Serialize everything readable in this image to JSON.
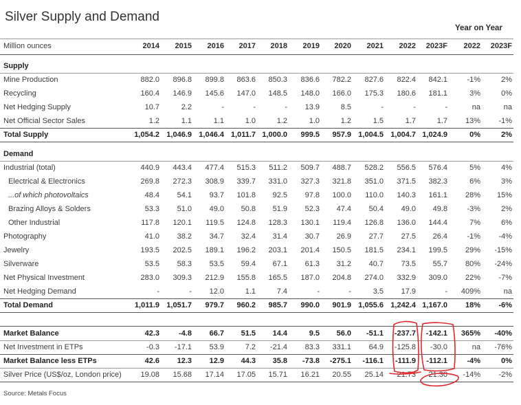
{
  "title": "Silver Supply and Demand",
  "yoy_heading": "Year on Year",
  "unit_label": "Million ounces",
  "columns": [
    "2014",
    "2015",
    "2016",
    "2017",
    "2018",
    "2019",
    "2020",
    "2021",
    "2022",
    "2023F",
    "2022",
    "2023F"
  ],
  "supply": {
    "heading": "Supply",
    "rows": [
      {
        "label": "Mine Production",
        "values": [
          "882.0",
          "896.8",
          "899.8",
          "863.6",
          "850.3",
          "836.6",
          "782.2",
          "827.6",
          "822.4",
          "842.1",
          "-1%",
          "2%"
        ]
      },
      {
        "label": "Recycling",
        "values": [
          "160.4",
          "146.9",
          "145.6",
          "147.0",
          "148.5",
          "148.0",
          "166.0",
          "175.3",
          "180.6",
          "181.1",
          "3%",
          "0%"
        ]
      },
      {
        "label": "Net Hedging Supply",
        "values": [
          "10.7",
          "2.2",
          "-",
          "-",
          "-",
          "13.9",
          "8.5",
          "-",
          "-",
          "-",
          "na",
          "na"
        ]
      },
      {
        "label": "Net Official Sector Sales",
        "values": [
          "1.2",
          "1.1",
          "1.1",
          "1.0",
          "1.2",
          "1.0",
          "1.2",
          "1.5",
          "1.7",
          "1.7",
          "13%",
          "-1%"
        ]
      }
    ],
    "total": {
      "label": "Total Supply",
      "values": [
        "1,054.2",
        "1,046.9",
        "1,046.4",
        "1,011.7",
        "1,000.0",
        "999.5",
        "957.9",
        "1,004.5",
        "1,004.7",
        "1,024.9",
        "0%",
        "2%"
      ]
    }
  },
  "demand": {
    "heading": "Demand",
    "rows": [
      {
        "label": "Industrial (total)",
        "values": [
          "440.9",
          "443.4",
          "477.4",
          "515.3",
          "511.2",
          "509.7",
          "488.7",
          "528.2",
          "556.5",
          "576.4",
          "5%",
          "4%"
        ]
      },
      {
        "label": "Electrical & Electronics",
        "values": [
          "269.8",
          "272.3",
          "308.9",
          "339.7",
          "331.0",
          "327.3",
          "321.8",
          "351.0",
          "371.5",
          "382.3",
          "6%",
          "3%"
        ]
      },
      {
        "label": "...of which photovoltaics",
        "values": [
          "48.4",
          "54.1",
          "93.7",
          "101.8",
          "92.5",
          "97.8",
          "100.0",
          "110.0",
          "140.3",
          "161.1",
          "28%",
          "15%"
        ]
      },
      {
        "label": "Brazing Alloys & Solders",
        "values": [
          "53.3",
          "51.0",
          "49.0",
          "50.8",
          "51.9",
          "52.3",
          "47.4",
          "50.4",
          "49.0",
          "49.8",
          "-3%",
          "2%"
        ]
      },
      {
        "label": "Other Industrial",
        "values": [
          "117.8",
          "120.1",
          "119.5",
          "124.8",
          "128.3",
          "130.1",
          "119.4",
          "126.8",
          "136.0",
          "144.4",
          "7%",
          "6%"
        ]
      },
      {
        "label": "Photography",
        "values": [
          "41.0",
          "38.2",
          "34.7",
          "32.4",
          "31.4",
          "30.7",
          "26.9",
          "27.7",
          "27.5",
          "26.4",
          "-1%",
          "-4%"
        ]
      },
      {
        "label": "Jewelry",
        "values": [
          "193.5",
          "202.5",
          "189.1",
          "196.2",
          "203.1",
          "201.4",
          "150.5",
          "181.5",
          "234.1",
          "199.5",
          "29%",
          "-15%"
        ]
      },
      {
        "label": "Silverware",
        "values": [
          "53.5",
          "58.3",
          "53.5",
          "59.4",
          "67.1",
          "61.3",
          "31.2",
          "40.7",
          "73.5",
          "55.7",
          "80%",
          "-24%"
        ]
      },
      {
        "label": "Net Physical Investment",
        "values": [
          "283.0",
          "309.3",
          "212.9",
          "155.8",
          "165.5",
          "187.0",
          "204.8",
          "274.0",
          "332.9",
          "309.0",
          "22%",
          "-7%"
        ]
      },
      {
        "label": "Net Hedging Demand",
        "values": [
          "-",
          "-",
          "12.0",
          "1.1",
          "7.4",
          "-",
          "-",
          "3.5",
          "17.9",
          "-",
          "409%",
          "na"
        ]
      }
    ],
    "total": {
      "label": "Total Demand",
      "values": [
        "1,011.9",
        "1,051.7",
        "979.7",
        "960.2",
        "985.7",
        "990.0",
        "901.9",
        "1,055.6",
        "1,242.4",
        "1,167.0",
        "18%",
        "-6%"
      ]
    }
  },
  "balance": {
    "market_balance": {
      "label": "Market Balance",
      "values": [
        "42.3",
        "-4.8",
        "66.7",
        "51.5",
        "14.4",
        "9.5",
        "56.0",
        "-51.1",
        "-237.7",
        "-142.1",
        "365%",
        "-40%"
      ]
    },
    "etps": {
      "label": "Net Investment in ETPs",
      "values": [
        "-0.3",
        "-17.1",
        "53.9",
        "7.2",
        "-21.4",
        "83.3",
        "331.1",
        "64.9",
        "-125.8",
        "-30.0",
        "na",
        "-76%"
      ]
    },
    "less_etps": {
      "label": "Market Balance less ETPs",
      "values": [
        "42.6",
        "12.3",
        "12.9",
        "44.3",
        "35.8",
        "-73.8",
        "-275.1",
        "-116.1",
        "-111.9",
        "-112.1",
        "-4%",
        "0%"
      ]
    },
    "price": {
      "label": "Silver Price (US$/oz, London price)",
      "values": [
        "19.08",
        "15.68",
        "17.14",
        "17.05",
        "15.71",
        "16.21",
        "20.55",
        "25.14",
        "21.73",
        "21.30",
        "-14%",
        "-2%"
      ]
    }
  },
  "source": "Source: Metals Focus",
  "annotation_color": "#e0262b"
}
